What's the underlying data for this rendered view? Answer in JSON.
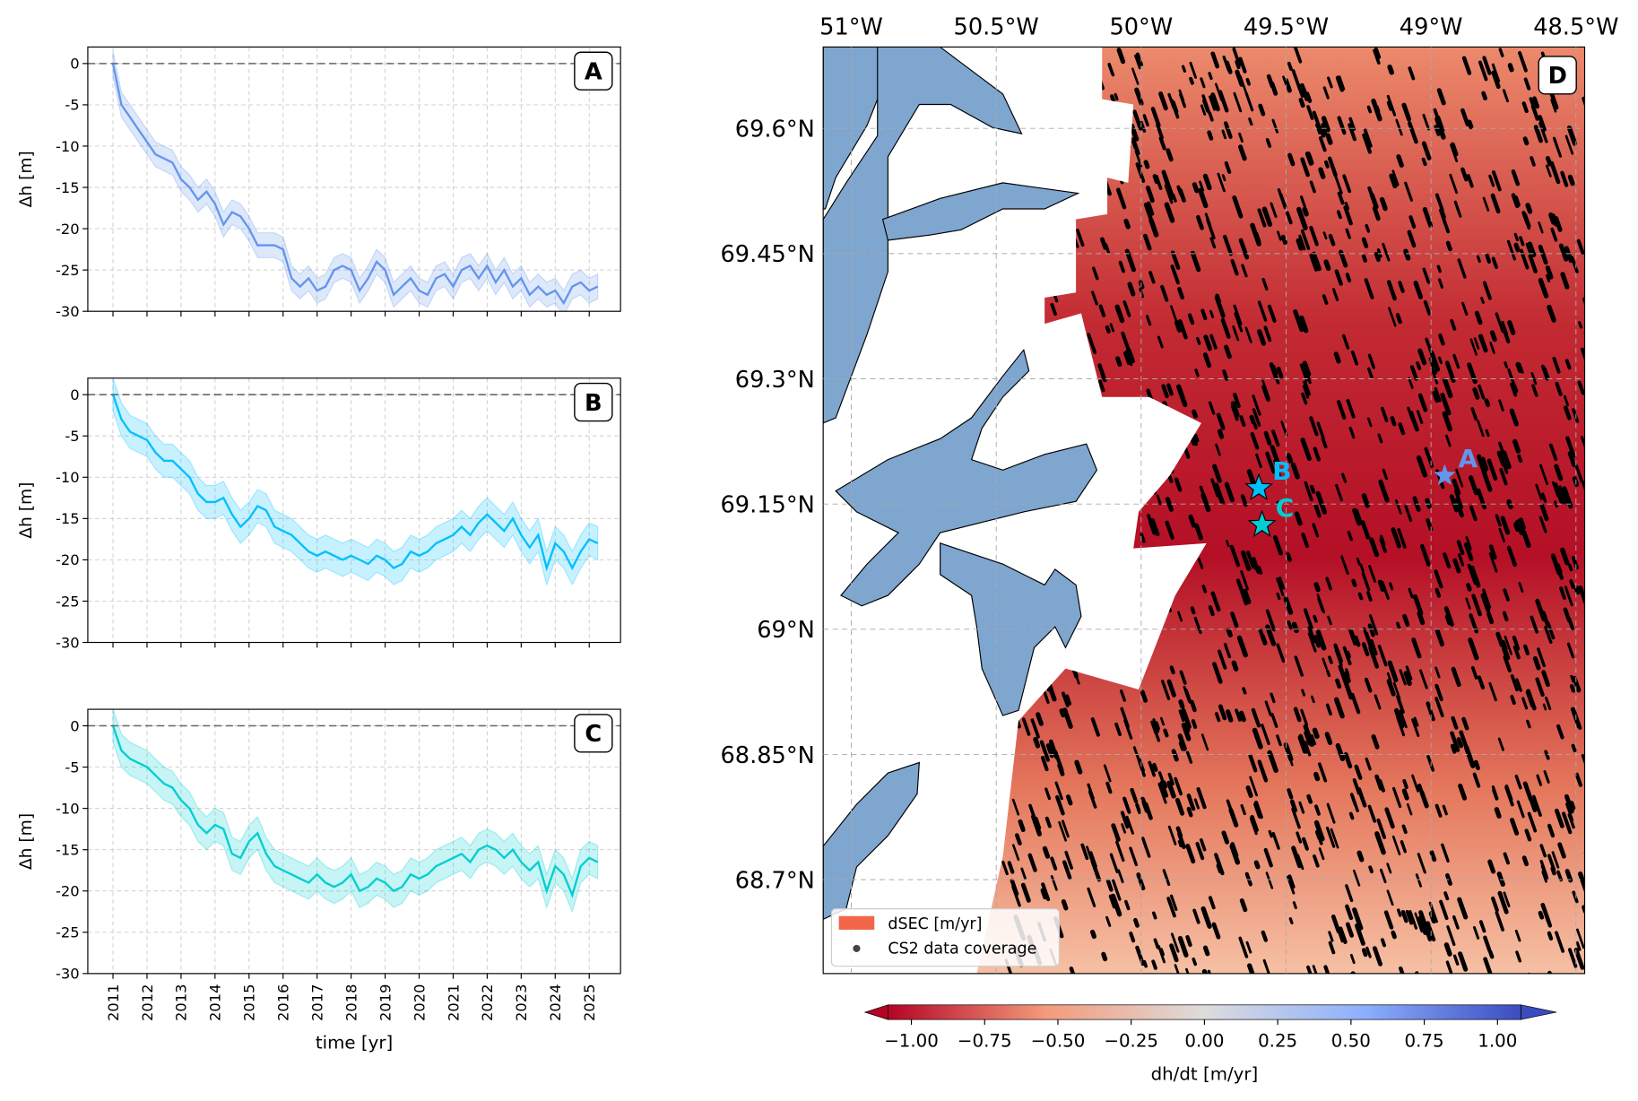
{
  "chart_data": [
    {
      "type": "line",
      "panel_label": "A",
      "ylabel": "Δh [m]",
      "grid": true,
      "reference_line": 0,
      "xtick_labels_shown": false,
      "xlim": [
        2010.26,
        2025.92
      ],
      "ylim": [
        -30,
        2
      ],
      "xticks": [
        2011,
        2012,
        2013,
        2014,
        2015,
        2016,
        2017,
        2018,
        2019,
        2020,
        2021,
        2022,
        2023,
        2024,
        2025
      ],
      "yticks": [
        -30,
        -25,
        -20,
        -15,
        -10,
        -5,
        0
      ],
      "x": [
        2011,
        2011.25,
        2011.5,
        2011.75,
        2012,
        2012.25,
        2012.5,
        2012.75,
        2013,
        2013.25,
        2013.5,
        2013.75,
        2014,
        2014.25,
        2014.5,
        2014.75,
        2015,
        2015.25,
        2015.5,
        2015.75,
        2016,
        2016.25,
        2016.5,
        2016.75,
        2017,
        2017.25,
        2017.5,
        2017.75,
        2018,
        2018.25,
        2018.5,
        2018.75,
        2019,
        2019.25,
        2019.5,
        2019.75,
        2020,
        2020.25,
        2020.5,
        2020.75,
        2021,
        2021.25,
        2021.5,
        2021.75,
        2022,
        2022.25,
        2022.5,
        2022.75,
        2023,
        2023.25,
        2023.5,
        2023.75,
        2024,
        2024.25,
        2024.5,
        2024.75,
        2025,
        2025.25
      ],
      "series": [
        {
          "color": "#6495ed",
          "uncertainty": 1.5,
          "values": [
            0,
            -5,
            -6.5,
            -8,
            -9.5,
            -11,
            -11.5,
            -12,
            -14,
            -15,
            -16.5,
            -15.5,
            -17,
            -19.5,
            -18,
            -18.5,
            -20,
            -22,
            -22,
            -22,
            -22.5,
            -26,
            -27,
            -26,
            -27.5,
            -27,
            -25,
            -24.5,
            -25,
            -27.5,
            -26,
            -24,
            -25,
            -28,
            -27,
            -26,
            -27.5,
            -28,
            -26,
            -25.5,
            -27,
            -25,
            -24.5,
            -26,
            -24.5,
            -26.5,
            -25,
            -27,
            -26,
            -28,
            -27,
            -28,
            -27.5,
            -29,
            -27,
            -26.5,
            -27.5,
            -27
          ]
        }
      ]
    },
    {
      "type": "line",
      "panel_label": "B",
      "ylabel": "Δh [m]",
      "grid": true,
      "reference_line": 0,
      "xtick_labels_shown": false,
      "xlim": [
        2010.26,
        2025.92
      ],
      "ylim": [
        -30,
        2
      ],
      "xticks": [
        2011,
        2012,
        2013,
        2014,
        2015,
        2016,
        2017,
        2018,
        2019,
        2020,
        2021,
        2022,
        2023,
        2024,
        2025
      ],
      "yticks": [
        -30,
        -25,
        -20,
        -15,
        -10,
        -5,
        0
      ],
      "x": [
        2011,
        2011.25,
        2011.5,
        2011.75,
        2012,
        2012.25,
        2012.5,
        2012.75,
        2013,
        2013.25,
        2013.5,
        2013.75,
        2014,
        2014.25,
        2014.5,
        2014.75,
        2015,
        2015.25,
        2015.5,
        2015.75,
        2016,
        2016.25,
        2016.5,
        2016.75,
        2017,
        2017.25,
        2017.5,
        2017.75,
        2018,
        2018.25,
        2018.5,
        2018.75,
        2019,
        2019.25,
        2019.5,
        2019.75,
        2020,
        2020.25,
        2020.5,
        2020.75,
        2021,
        2021.25,
        2021.5,
        2021.75,
        2022,
        2022.25,
        2022.5,
        2022.75,
        2023,
        2023.25,
        2023.5,
        2023.75,
        2024,
        2024.25,
        2024.5,
        2024.75,
        2025,
        2025.25
      ],
      "series": [
        {
          "color": "#00bfff",
          "uncertainty": 2,
          "values": [
            0,
            -3,
            -4.5,
            -5,
            -5.5,
            -7,
            -8,
            -8,
            -9,
            -10,
            -12,
            -13,
            -13,
            -12.5,
            -14.5,
            -16,
            -15,
            -13.5,
            -14,
            -16,
            -16.5,
            -17,
            -18,
            -19,
            -19.5,
            -19,
            -19.5,
            -20,
            -19.5,
            -20,
            -20.5,
            -19.5,
            -20,
            -21,
            -20.5,
            -19,
            -19.5,
            -19,
            -18,
            -17.5,
            -17,
            -16,
            -17,
            -15.5,
            -14.5,
            -15.5,
            -16.5,
            -15,
            -17,
            -18.5,
            -17,
            -21,
            -18,
            -19,
            -21,
            -19,
            -17.5,
            -18
          ]
        }
      ]
    },
    {
      "type": "line",
      "panel_label": "C",
      "ylabel": "Δh [m]",
      "xlabel": "time [yr]",
      "grid": true,
      "reference_line": 0,
      "xtick_labels_shown": true,
      "xlim": [
        2010.26,
        2025.92
      ],
      "ylim": [
        -30,
        2
      ],
      "xticks": [
        2011,
        2012,
        2013,
        2014,
        2015,
        2016,
        2017,
        2018,
        2019,
        2020,
        2021,
        2022,
        2023,
        2024,
        2025
      ],
      "yticks": [
        -30,
        -25,
        -20,
        -15,
        -10,
        -5,
        0
      ],
      "x": [
        2011,
        2011.25,
        2011.5,
        2011.75,
        2012,
        2012.25,
        2012.5,
        2012.75,
        2013,
        2013.25,
        2013.5,
        2013.75,
        2014,
        2014.25,
        2014.5,
        2014.75,
        2015,
        2015.25,
        2015.5,
        2015.75,
        2016,
        2016.25,
        2016.5,
        2016.75,
        2017,
        2017.25,
        2017.5,
        2017.75,
        2018,
        2018.25,
        2018.5,
        2018.75,
        2019,
        2019.25,
        2019.5,
        2019.75,
        2020,
        2020.25,
        2020.5,
        2020.75,
        2021,
        2021.25,
        2021.5,
        2021.75,
        2022,
        2022.25,
        2022.5,
        2022.75,
        2023,
        2023.25,
        2023.5,
        2023.75,
        2024,
        2024.25,
        2024.5,
        2024.75,
        2025,
        2025.25
      ],
      "series": [
        {
          "color": "#00ced1",
          "uncertainty": 2,
          "values": [
            0,
            -3,
            -4,
            -4.5,
            -5,
            -6,
            -7,
            -7.5,
            -9,
            -10,
            -12,
            -13,
            -12,
            -12.5,
            -15.5,
            -16,
            -14,
            -13,
            -15.5,
            -17,
            -17.5,
            -18,
            -18.5,
            -19,
            -18,
            -19,
            -19.5,
            -19,
            -18,
            -20,
            -19.5,
            -18.5,
            -19,
            -20,
            -19.5,
            -18,
            -18.5,
            -18,
            -17,
            -16.5,
            -16,
            -15.5,
            -16.5,
            -15,
            -14.5,
            -15,
            -16,
            -15,
            -16.5,
            -17.5,
            -16.5,
            -20,
            -17,
            -18,
            -20.5,
            -17,
            -16,
            -16.5
          ]
        }
      ]
    },
    {
      "type": "map",
      "panel_label": "D",
      "grid": true,
      "xlim": [
        -51.097,
        -48.47
      ],
      "ylim": [
        68.5875,
        69.6975
      ],
      "xticks": [
        {
          "value": -51,
          "label": "51°W"
        },
        {
          "value": -50.5,
          "label": "50.5°W"
        },
        {
          "value": -50,
          "label": "50°W"
        },
        {
          "value": -49.5,
          "label": "49.5°W"
        },
        {
          "value": -49,
          "label": "49°W"
        },
        {
          "value": -48.5,
          "label": "48.5°W"
        }
      ],
      "yticks": [
        {
          "value": 69.6,
          "label": "69.6°N"
        },
        {
          "value": 69.45,
          "label": "69.45°N"
        },
        {
          "value": 69.3,
          "label": "69.3°N"
        },
        {
          "value": 69.15,
          "label": "69.15°N"
        },
        {
          "value": 69,
          "label": "69°N"
        },
        {
          "value": 68.85,
          "label": "68.85°N"
        },
        {
          "value": 68.7,
          "label": "68.7°N"
        }
      ],
      "points": [
        {
          "label": "A",
          "color": "#6495ed",
          "lon": -48.953,
          "lat": 69.184
        },
        {
          "label": "B",
          "color": "#00bfff",
          "lon": -49.594,
          "lat": 69.169
        },
        {
          "label": "C",
          "color": "#00ced1",
          "lon": -49.583,
          "lat": 69.125
        }
      ],
      "legend": [
        "dSEC [m/yr]",
        "CS2 data coverage"
      ],
      "colorbar": {
        "label": "dh/dt [m/yr]",
        "lim": [
          -1.08,
          1.08
        ],
        "ticks": [
          {
            "value": -1,
            "label": "−1.00"
          },
          {
            "value": -0.75,
            "label": "−0.75"
          },
          {
            "value": -0.5,
            "label": "−0.50"
          },
          {
            "value": -0.25,
            "label": "−0.25"
          },
          {
            "value": 0,
            "label": "0.00"
          },
          {
            "value": 0.25,
            "label": "0.25"
          },
          {
            "value": 0.5,
            "label": "0.50"
          },
          {
            "value": 0.75,
            "label": "0.75"
          },
          {
            "value": 1,
            "label": "1.00"
          }
        ]
      }
    }
  ]
}
